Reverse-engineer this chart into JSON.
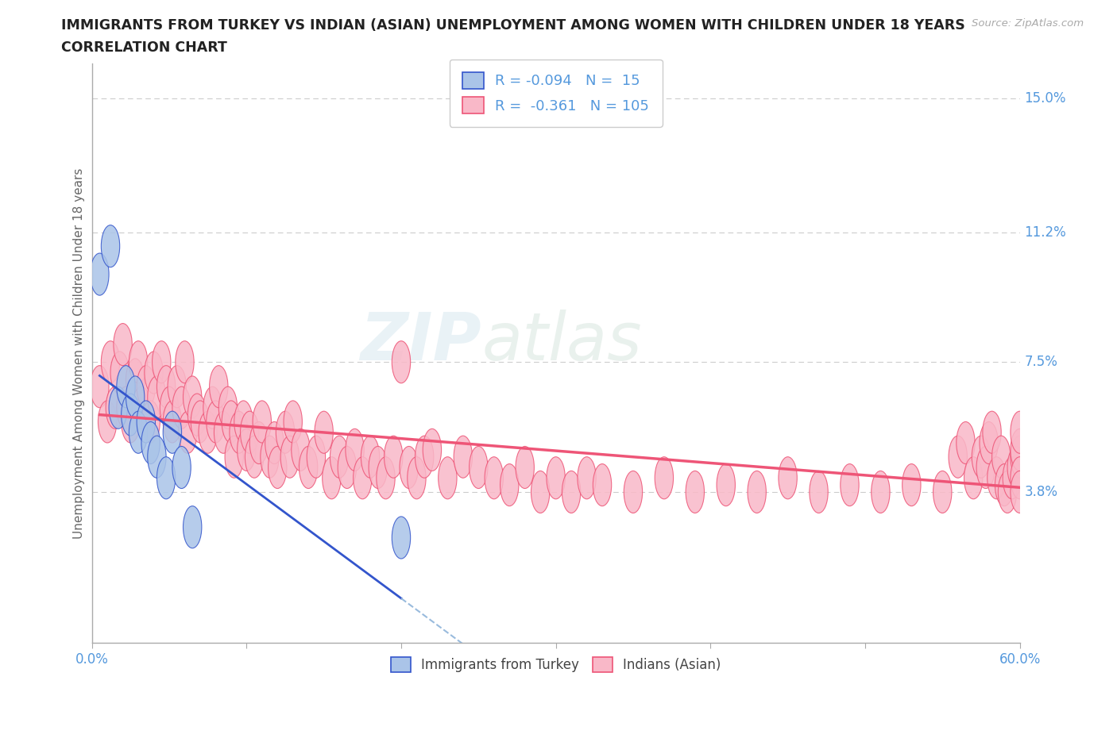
{
  "title": "IMMIGRANTS FROM TURKEY VS INDIAN (ASIAN) UNEMPLOYMENT AMONG WOMEN WITH CHILDREN UNDER 18 YEARS",
  "subtitle": "CORRELATION CHART",
  "source": "Source: ZipAtlas.com",
  "ylabel": "Unemployment Among Women with Children Under 18 years",
  "xlim": [
    0,
    0.6
  ],
  "ylim": [
    -0.005,
    0.16
  ],
  "yticks": [
    0.038,
    0.075,
    0.112,
    0.15
  ],
  "ytick_labels": [
    "3.8%",
    "7.5%",
    "11.2%",
    "15.0%"
  ],
  "xticks": [
    0.0,
    0.1,
    0.2,
    0.3,
    0.4,
    0.5,
    0.6
  ],
  "xtick_labels": [
    "0.0%",
    "",
    "",
    "",
    "",
    "",
    "60.0%"
  ],
  "turkey_color": "#aac4e8",
  "india_color": "#f9b8c8",
  "trend_turkey_color": "#3355cc",
  "trend_turkey_dashed_color": "#99bbdd",
  "trend_india_color": "#ee5577",
  "legend_turkey_label": "Immigrants from Turkey",
  "legend_india_label": "Indians (Asian)",
  "R_turkey": -0.094,
  "N_turkey": 15,
  "R_india": -0.361,
  "N_india": 105,
  "watermark_zip": "ZIP",
  "watermark_atlas": "atlas",
  "background_color": "#ffffff",
  "grid_color": "#cccccc",
  "title_color": "#222222",
  "axis_label_color": "#666666",
  "tick_label_color": "#5599dd",
  "legend_label_color": "#5599dd",
  "bottom_legend_color": "#444444",
  "turkey_x": [
    0.005,
    0.012,
    0.017,
    0.022,
    0.025,
    0.028,
    0.03,
    0.035,
    0.038,
    0.042,
    0.048,
    0.052,
    0.058,
    0.065,
    0.2
  ],
  "turkey_y": [
    0.1,
    0.108,
    0.062,
    0.068,
    0.06,
    0.065,
    0.055,
    0.058,
    0.052,
    0.048,
    0.042,
    0.055,
    0.045,
    0.028,
    0.025
  ],
  "india_x": [
    0.005,
    0.01,
    0.012,
    0.015,
    0.018,
    0.02,
    0.022,
    0.025,
    0.028,
    0.03,
    0.032,
    0.035,
    0.038,
    0.04,
    0.042,
    0.045,
    0.048,
    0.05,
    0.052,
    0.055,
    0.058,
    0.06,
    0.062,
    0.065,
    0.068,
    0.07,
    0.075,
    0.078,
    0.08,
    0.082,
    0.085,
    0.088,
    0.09,
    0.092,
    0.095,
    0.098,
    0.1,
    0.102,
    0.105,
    0.108,
    0.11,
    0.115,
    0.118,
    0.12,
    0.125,
    0.128,
    0.13,
    0.135,
    0.14,
    0.145,
    0.15,
    0.155,
    0.16,
    0.165,
    0.17,
    0.175,
    0.18,
    0.185,
    0.19,
    0.195,
    0.2,
    0.205,
    0.21,
    0.215,
    0.22,
    0.23,
    0.24,
    0.25,
    0.26,
    0.27,
    0.28,
    0.29,
    0.3,
    0.31,
    0.32,
    0.33,
    0.35,
    0.37,
    0.39,
    0.41,
    0.43,
    0.45,
    0.47,
    0.49,
    0.51,
    0.53,
    0.55,
    0.56,
    0.565,
    0.57,
    0.575,
    0.578,
    0.58,
    0.582,
    0.585,
    0.588,
    0.59,
    0.592,
    0.595,
    0.598,
    0.6,
    0.6,
    0.6,
    0.6,
    0.6
  ],
  "india_y": [
    0.068,
    0.058,
    0.075,
    0.062,
    0.072,
    0.08,
    0.062,
    0.058,
    0.07,
    0.075,
    0.062,
    0.068,
    0.058,
    0.072,
    0.065,
    0.075,
    0.068,
    0.062,
    0.058,
    0.068,
    0.062,
    0.075,
    0.055,
    0.065,
    0.06,
    0.058,
    0.055,
    0.062,
    0.058,
    0.068,
    0.055,
    0.062,
    0.058,
    0.048,
    0.055,
    0.058,
    0.05,
    0.055,
    0.048,
    0.052,
    0.058,
    0.048,
    0.052,
    0.045,
    0.055,
    0.048,
    0.058,
    0.05,
    0.045,
    0.048,
    0.055,
    0.042,
    0.048,
    0.045,
    0.05,
    0.042,
    0.048,
    0.045,
    0.042,
    0.048,
    0.075,
    0.045,
    0.042,
    0.048,
    0.05,
    0.042,
    0.048,
    0.045,
    0.042,
    0.04,
    0.045,
    0.038,
    0.042,
    0.038,
    0.042,
    0.04,
    0.038,
    0.042,
    0.038,
    0.04,
    0.038,
    0.042,
    0.038,
    0.04,
    0.038,
    0.04,
    0.038,
    0.048,
    0.052,
    0.042,
    0.048,
    0.045,
    0.052,
    0.055,
    0.042,
    0.048,
    0.04,
    0.038,
    0.042,
    0.045,
    0.048,
    0.05,
    0.055,
    0.042,
    0.038
  ]
}
